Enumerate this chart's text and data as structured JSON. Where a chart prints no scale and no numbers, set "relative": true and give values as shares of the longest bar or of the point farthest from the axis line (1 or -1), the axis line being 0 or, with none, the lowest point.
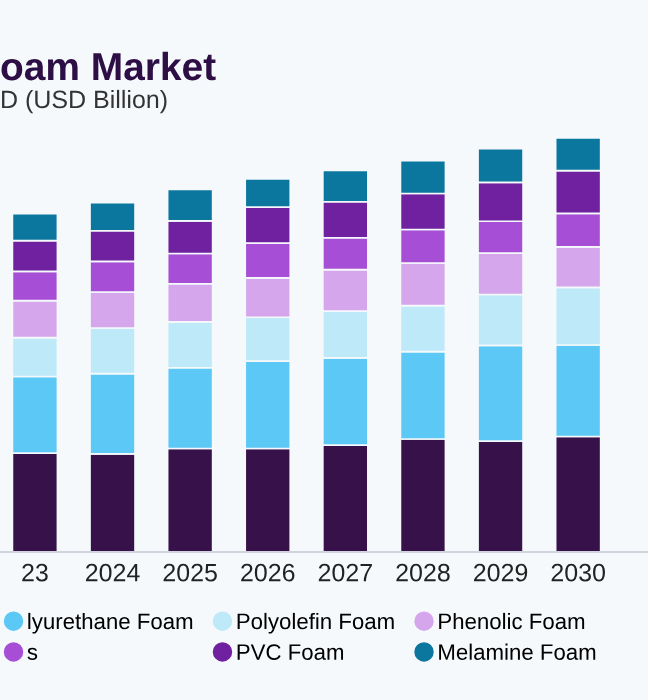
{
  "chart_data": {
    "type": "bar",
    "title": "oam Market",
    "subtitle": "D (USD Billion)",
    "stacked": true,
    "relative": true,
    "grid": false,
    "legend": "bottom",
    "categories": [
      "23",
      "2024",
      "2025",
      "2026",
      "2027",
      "2028",
      "2029",
      "2030"
    ],
    "series": [
      {
        "color": "#37114a",
        "values": [
          0.239,
          0.237,
          0.25,
          0.25,
          0.258,
          0.273,
          0.268,
          0.279
        ]
      },
      {
        "name": "lyurethane Foam",
        "color": "#5bc8f5",
        "values": [
          0.185,
          0.194,
          0.195,
          0.211,
          0.211,
          0.211,
          0.231,
          0.221
        ]
      },
      {
        "name": "Polyolefin Foam",
        "color": "#bde9f8",
        "values": [
          0.094,
          0.11,
          0.111,
          0.106,
          0.113,
          0.111,
          0.123,
          0.139
        ]
      },
      {
        "name": "Phenolic Foam",
        "color": "#d5a6ec",
        "values": [
          0.089,
          0.087,
          0.092,
          0.095,
          0.1,
          0.103,
          0.1,
          0.098
        ]
      },
      {
        "name": "s",
        "color": "#a64fd6",
        "values": [
          0.071,
          0.074,
          0.073,
          0.084,
          0.077,
          0.081,
          0.077,
          0.081
        ]
      },
      {
        "name": "PVC Foam",
        "color": "#6f21a0",
        "values": [
          0.074,
          0.074,
          0.079,
          0.087,
          0.087,
          0.087,
          0.094,
          0.103
        ]
      },
      {
        "name": "Melamine Foam",
        "color": "#0b779e",
        "values": [
          0.065,
          0.068,
          0.076,
          0.068,
          0.076,
          0.079,
          0.081,
          0.079
        ]
      }
    ]
  }
}
